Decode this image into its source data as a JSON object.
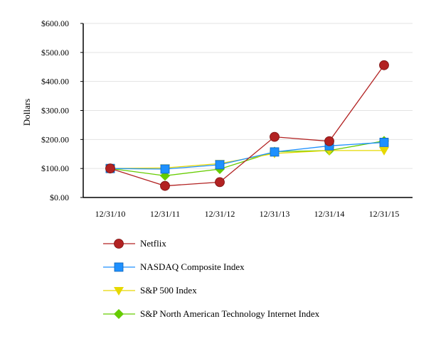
{
  "chart_data": {
    "type": "line",
    "title": "",
    "xlabel": "",
    "ylabel": "Dollars",
    "categories": [
      "12/31/10",
      "12/31/11",
      "12/31/12",
      "12/31/13",
      "12/31/14",
      "12/31/15"
    ],
    "ylim": [
      0,
      600
    ],
    "yticks": [
      0,
      100,
      200,
      300,
      400,
      500,
      600
    ],
    "ytick_labels": [
      "$0.00",
      "$100.00",
      "$200.00",
      "$300.00",
      "$400.00",
      "$500.00",
      "$600.00"
    ],
    "grid": true,
    "legend_placement": "bottom",
    "series": [
      {
        "name": "Netflix",
        "color": "#b22222",
        "marker": "circle",
        "values": [
          100,
          40,
          53,
          209,
          194,
          456
        ]
      },
      {
        "name": "NASDAQ Composite Index",
        "color": "#1e90ff",
        "marker": "square",
        "values": [
          100,
          98,
          113,
          157,
          178,
          190
        ]
      },
      {
        "name": "S&P 500 Index",
        "color": "#e6d800",
        "marker": "triangle-down",
        "values": [
          100,
          102,
          117,
          152,
          162,
          162
        ]
      },
      {
        "name": "S&P North American Technology Internet Index",
        "color": "#66cc00",
        "marker": "diamond",
        "values": [
          100,
          75,
          98,
          158,
          162,
          195
        ]
      }
    ]
  }
}
